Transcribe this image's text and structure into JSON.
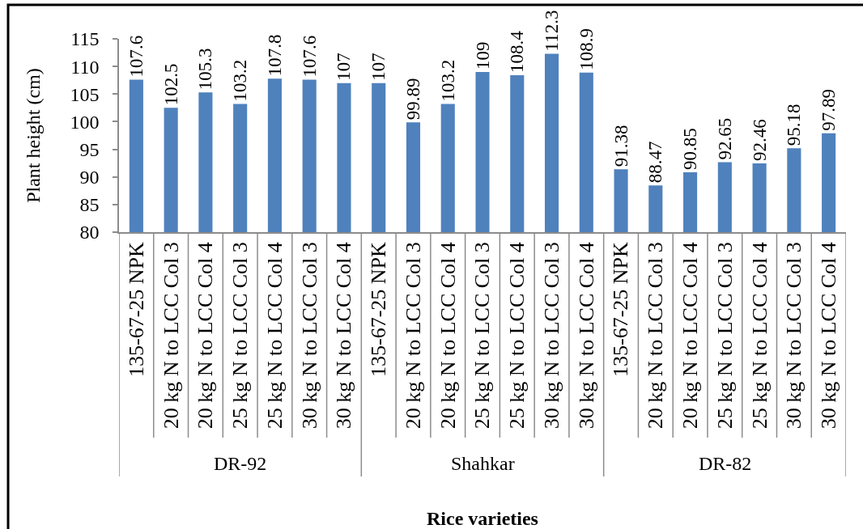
{
  "chart_data": {
    "type": "bar",
    "categories": [
      "135-67-25 NPK",
      "20 kg N to LCC Col 3",
      "20 kg N to LCC Col 4",
      "25 kg N to LCC Col 3",
      "25 kg N to LCC Col 4",
      "30 kg N to LCC Col 3",
      "30 kg N to LCC Col 4",
      "135-67-25 NPK",
      "20 kg N to LCC Col 3",
      "20 kg N to LCC Col 4",
      "25 kg N to LCC Col 3",
      "25 kg N to LCC Col 4",
      "30 kg N to LCC Col 3",
      "30 kg N to LCC Col 4",
      "135-67-25 NPK",
      "20 kg N to LCC Col 3",
      "20 kg N to LCC Col 4",
      "25 kg N to LCC Col 3",
      "25 kg N to LCC Col 4",
      "30 kg N to LCC Col 3",
      "30 kg N to LCC Col 4"
    ],
    "values": [
      107.6,
      102.5,
      105.3,
      103.2,
      107.8,
      107.6,
      107,
      107,
      99.89,
      103.2,
      109,
      108.4,
      112.3,
      108.9,
      91.38,
      88.47,
      90.85,
      92.65,
      92.46,
      95.18,
      97.89
    ],
    "color": "#4f81bd",
    "ylim": [
      80,
      115
    ],
    "yticks": [
      80,
      85,
      90,
      95,
      100,
      105,
      110,
      115
    ],
    "xlabel": "Rice varieties",
    "ylabel": "Plant height (cm)",
    "annotations": [
      "DR-92",
      "Shahkar",
      "DR-82"
    ],
    "data_labels": true,
    "grid": false
  }
}
